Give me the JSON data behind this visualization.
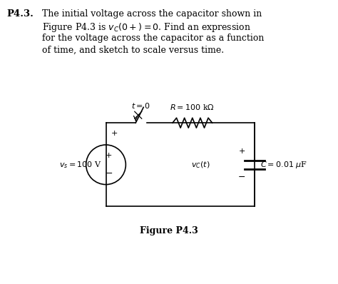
{
  "background_color": "#ffffff",
  "problem_text_line1": "The initial voltage across the capacitor shown in",
  "problem_text_line2": "Figure P4.3 is $v_C(0+) = 0$. Find an expression",
  "problem_text_line3": "for the voltage across the capacitor as a function",
  "problem_text_line4": "of time, and sketch to scale versus time.",
  "figure_label": "Figure P4.3",
  "resistor_label": "$R = 100$ k$\\Omega$",
  "capacitor_label": "$C = 0.01$ $\\mu$F",
  "vc_label": "$v_C(t)$",
  "vs_label": "$v_s = 100$ V",
  "t0_label": "$t = 0$"
}
